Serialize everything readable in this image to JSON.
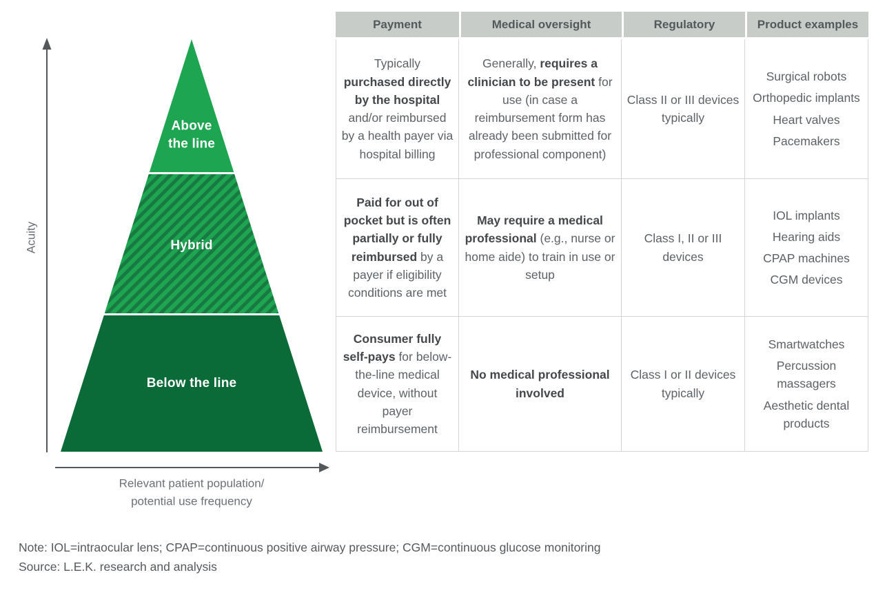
{
  "pyramid": {
    "tiers": [
      {
        "id": "above-the-line",
        "label": "Above\nthe line",
        "fill": "#1ea551"
      },
      {
        "id": "hybrid",
        "label": "Hybrid",
        "fill_light": "#1ea551",
        "fill_dark": "#187a41",
        "pattern": "diagonal-stripes"
      },
      {
        "id": "below-the-line",
        "label": "Below the line",
        "fill": "#0b6b38"
      }
    ],
    "y_axis_label": "Acuity",
    "x_axis_label": "Relevant patient population/\npotential use frequency",
    "axis_color": "#55585a"
  },
  "table": {
    "headers": [
      "Payment",
      "Medical oversight",
      "Regulatory",
      "Product examples"
    ],
    "header_bg": "#c7ccc9",
    "rows": [
      {
        "payment": [
          {
            "text": "Typically\n"
          },
          {
            "text": "purchased directly by the hospital",
            "bold": true
          },
          {
            "text": " and/or reimbursed by a health payer via hospital billing"
          }
        ],
        "oversight": [
          {
            "text": "Generally, "
          },
          {
            "text": "requires a clinician to be present",
            "bold": true
          },
          {
            "text": " for use (in case a reimbursement form has already been submitted for professional component)"
          }
        ],
        "regulatory": "Class II or III devices typically",
        "products": [
          "Surgical robots",
          "Orthopedic implants",
          "Heart valves",
          "Pacemakers"
        ]
      },
      {
        "payment": [
          {
            "text": "Paid for out of pocket but is often partially or fully reimbursed",
            "bold": true
          },
          {
            "text": " by a payer if eligibility conditions are met"
          }
        ],
        "oversight": [
          {
            "text": "May require a medical professional",
            "bold": true
          },
          {
            "text": " (e.g., nurse or home aide) to train in use or setup"
          }
        ],
        "regulatory": "Class I, II or III devices",
        "products": [
          "IOL implants",
          "Hearing aids",
          "CPAP machines",
          "CGM devices"
        ]
      },
      {
        "payment": [
          {
            "text": "Consumer fully self-pays",
            "bold": true
          },
          {
            "text": " for below-the-line medical device, without payer reimbursement"
          }
        ],
        "oversight": [
          {
            "text": "No medical professional involved",
            "bold": true
          }
        ],
        "regulatory": "Class I or II devices typically",
        "products": [
          "Smartwatches",
          "Percussion massagers",
          "Aesthetic dental products"
        ]
      }
    ]
  },
  "footnotes": {
    "note": "Note: IOL=intraocular lens; CPAP=continuous positive airway pressure; CGM=continuous glucose monitoring",
    "source": "Source: L.E.K. research and analysis"
  }
}
